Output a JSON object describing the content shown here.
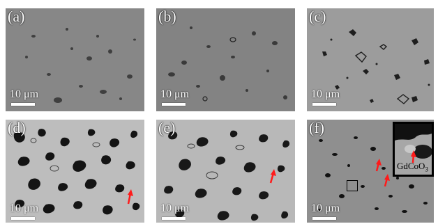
{
  "panels": [
    {
      "label": "(a)",
      "scale": "10 μm"
    },
    {
      "label": "(b)",
      "scale": "10 μm"
    },
    {
      "label": "(c)",
      "scale": "10 μm"
    },
    {
      "label": "(d)",
      "scale": "10 μm"
    },
    {
      "label": "(e)",
      "scale": "10 μm"
    },
    {
      "label": "(f)",
      "scale": "10 μm"
    }
  ],
  "inset": {
    "label": "GdCoO",
    "label_sub": "3"
  },
  "colors": {
    "arrow": "#ff1a1a",
    "background_gray": "#8a8a8a",
    "porosity_matrix": "#b8b8b8"
  }
}
